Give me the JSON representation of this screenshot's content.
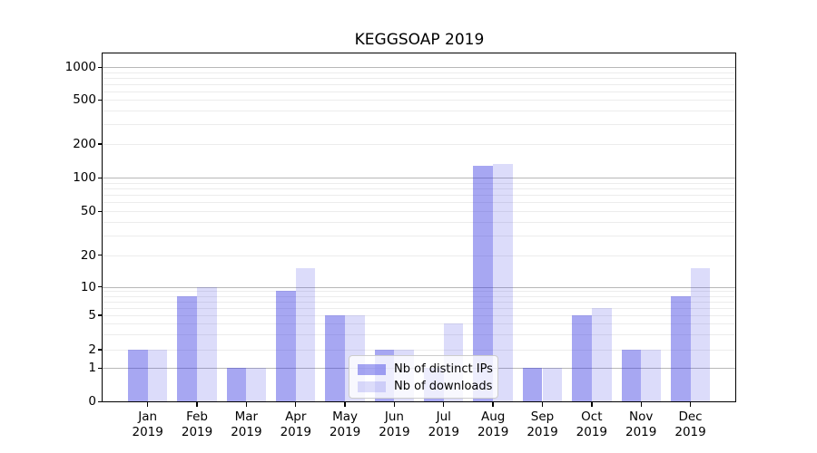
{
  "title": "KEGGSOAP 2019",
  "chart_data": {
    "type": "bar",
    "title": "KEGGSOAP 2019",
    "categories": [
      {
        "month": "Jan",
        "year": "2019"
      },
      {
        "month": "Feb",
        "year": "2019"
      },
      {
        "month": "Mar",
        "year": "2019"
      },
      {
        "month": "Apr",
        "year": "2019"
      },
      {
        "month": "May",
        "year": "2019"
      },
      {
        "month": "Jun",
        "year": "2019"
      },
      {
        "month": "Jul",
        "year": "2019"
      },
      {
        "month": "Aug",
        "year": "2019"
      },
      {
        "month": "Sep",
        "year": "2019"
      },
      {
        "month": "Oct",
        "year": "2019"
      },
      {
        "month": "Nov",
        "year": "2019"
      },
      {
        "month": "Dec",
        "year": "2019"
      }
    ],
    "series": [
      {
        "name": "Nb of distinct IPs",
        "color": "rgba(45,45,225,0.42)",
        "values": [
          2,
          8,
          1,
          9,
          5,
          2,
          1,
          128,
          1,
          5,
          2,
          8
        ]
      },
      {
        "name": "Nb of downloads",
        "color": "rgba(45,45,225,0.17)",
        "values": [
          2,
          10,
          1,
          15,
          5,
          2,
          4,
          133,
          1,
          6,
          2,
          15
        ]
      }
    ],
    "y_axis": {
      "scale": "log-like (compressed near zero)",
      "ticks": [
        0,
        1,
        2,
        5,
        10,
        20,
        50,
        100,
        200,
        500,
        1000
      ],
      "major_gridlines": [
        1,
        10,
        100,
        1000
      ],
      "minor_gridlines": [
        2,
        3,
        4,
        5,
        6,
        7,
        8,
        9,
        20,
        30,
        40,
        50,
        60,
        70,
        80,
        90,
        200,
        300,
        400,
        500,
        600,
        700,
        800,
        900
      ],
      "anchors": [
        [
          0,
          0
        ],
        [
          1,
          0.0956
        ],
        [
          2,
          0.1494
        ],
        [
          5,
          0.2481
        ],
        [
          10,
          0.3294
        ],
        [
          20,
          0.4203
        ],
        [
          50,
          0.5468
        ],
        [
          100,
          0.6429
        ],
        [
          200,
          0.7397
        ],
        [
          500,
          0.8662
        ],
        [
          1000,
          0.9597
        ]
      ],
      "top_value": 1330
    },
    "x_axis": {
      "tick_label_lines": 2
    },
    "legend": {
      "position": "lower center",
      "entries": [
        "Nb of distinct IPs",
        "Nb of downloads"
      ]
    },
    "grid": "horizontal only"
  },
  "colors": {
    "bar_distinct_ips": "rgba(45,45,225,0.42)",
    "bar_downloads": "rgba(45,45,225,0.17)",
    "major_grid": "#b8b8b8",
    "minor_grid": "#ececec",
    "axis": "#000000",
    "legend_border": "#cccccc",
    "background": "#ffffff"
  }
}
